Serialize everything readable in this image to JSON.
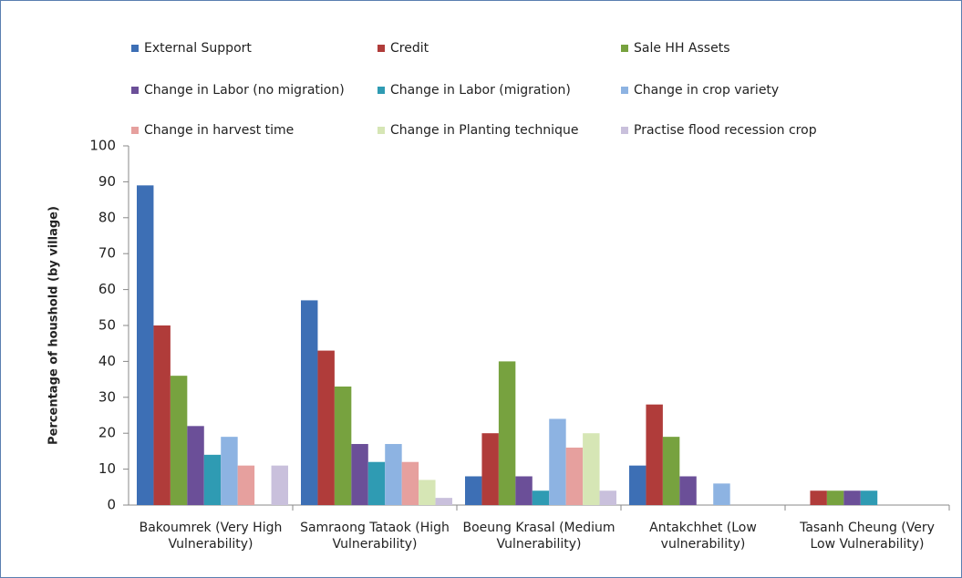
{
  "chart_data": {
    "type": "bar",
    "y_label": "Percentage of houshold (by village)",
    "categories": [
      "Bakoumrek (Very High Vulnerability)",
      "Samraong Tataok (High Vulnerability)",
      "Boeung Krasal (Medium Vulnerability)",
      "Antakchhet (Low vulnerability)",
      "Tasanh Cheung (Very Low Vulnerability)"
    ],
    "series": [
      {
        "name": "External Support",
        "color": "#3d6fb5",
        "values": [
          89,
          57,
          8,
          11,
          0
        ]
      },
      {
        "name": "Credit",
        "color": "#b03c3a",
        "values": [
          50,
          43,
          20,
          28,
          4
        ]
      },
      {
        "name": "Sale HH Assets",
        "color": "#77a23f",
        "values": [
          36,
          33,
          40,
          19,
          4
        ]
      },
      {
        "name": "Change in Labor (no migration)",
        "color": "#6b4f98",
        "values": [
          22,
          17,
          8,
          8,
          4
        ]
      },
      {
        "name": "Change in Labor (migration)",
        "color": "#2f9bb3",
        "values": [
          14,
          12,
          4,
          0,
          4
        ]
      },
      {
        "name": "Change in crop variety",
        "color": "#8db3e2",
        "values": [
          19,
          17,
          24,
          6,
          0
        ]
      },
      {
        "name": "Change in harvest time",
        "color": "#e6a09e",
        "values": [
          11,
          12,
          16,
          0,
          0
        ]
      },
      {
        "name": "Change in Planting technique",
        "color": "#d6e6b5",
        "values": [
          0,
          7,
          20,
          0,
          0
        ]
      },
      {
        "name": "Practise flood recession crop",
        "color": "#c9c0dc",
        "values": [
          11,
          2,
          4,
          0,
          0
        ]
      }
    ],
    "ylim": [
      0,
      100
    ],
    "yticks": [
      0,
      10,
      20,
      30,
      40,
      50,
      60,
      70,
      80,
      90,
      100
    ]
  }
}
